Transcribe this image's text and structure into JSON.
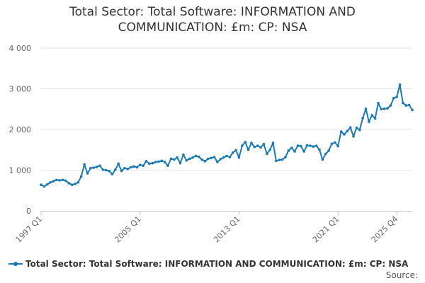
{
  "chart_data": {
    "type": "line",
    "title": "Total Sector: Total Software: INFORMATION AND COMMUNICATION: £m: CP: NSA",
    "xlabel": "",
    "ylabel": "",
    "ylim": [
      0,
      4000
    ],
    "y_ticks": [
      0,
      1000,
      2000,
      3000,
      4000
    ],
    "y_tick_labels": [
      "0",
      "1 000",
      "2 000",
      "3 000",
      "4 000"
    ],
    "x_ticks": [
      "1997 Q1",
      "2005 Q1",
      "2013 Q1",
      "2021 Q1",
      "2025 Q4"
    ],
    "grid": true,
    "legend_position": "bottom-left",
    "series": [
      {
        "name": "Total Sector: Total Software: INFORMATION AND COMMUNICATION: £m: CP: NSA",
        "color": "#1a7ab6",
        "start": "1997 Q1",
        "values": [
          640,
          600,
          650,
          700,
          730,
          760,
          750,
          760,
          740,
          680,
          640,
          660,
          700,
          850,
          1140,
          920,
          1050,
          1060,
          1080,
          1110,
          1010,
          1000,
          980,
          900,
          1010,
          1160,
          980,
          1050,
          1030,
          1070,
          1090,
          1070,
          1130,
          1110,
          1220,
          1160,
          1170,
          1200,
          1210,
          1230,
          1200,
          1110,
          1280,
          1260,
          1310,
          1170,
          1380,
          1240,
          1280,
          1310,
          1350,
          1330,
          1260,
          1220,
          1280,
          1300,
          1320,
          1200,
          1270,
          1310,
          1350,
          1320,
          1430,
          1490,
          1310,
          1600,
          1690,
          1500,
          1670,
          1570,
          1600,
          1560,
          1640,
          1400,
          1500,
          1670,
          1230,
          1250,
          1260,
          1320,
          1480,
          1550,
          1460,
          1600,
          1590,
          1460,
          1610,
          1600,
          1580,
          1600,
          1500,
          1260,
          1400,
          1480,
          1650,
          1680,
          1590,
          1950,
          1880,
          1960,
          2050,
          1830,
          2040,
          1990,
          2280,
          2510,
          2190,
          2350,
          2270,
          2650,
          2500,
          2510,
          2520,
          2590,
          2770,
          2800,
          3100,
          2650,
          2590,
          2600,
          2480
        ]
      }
    ]
  },
  "legend": {
    "label": "Total Sector: Total Software: INFORMATION AND COMMUNICATION: £m: CP: NSA"
  },
  "footer": {
    "source_label": "Source:"
  }
}
